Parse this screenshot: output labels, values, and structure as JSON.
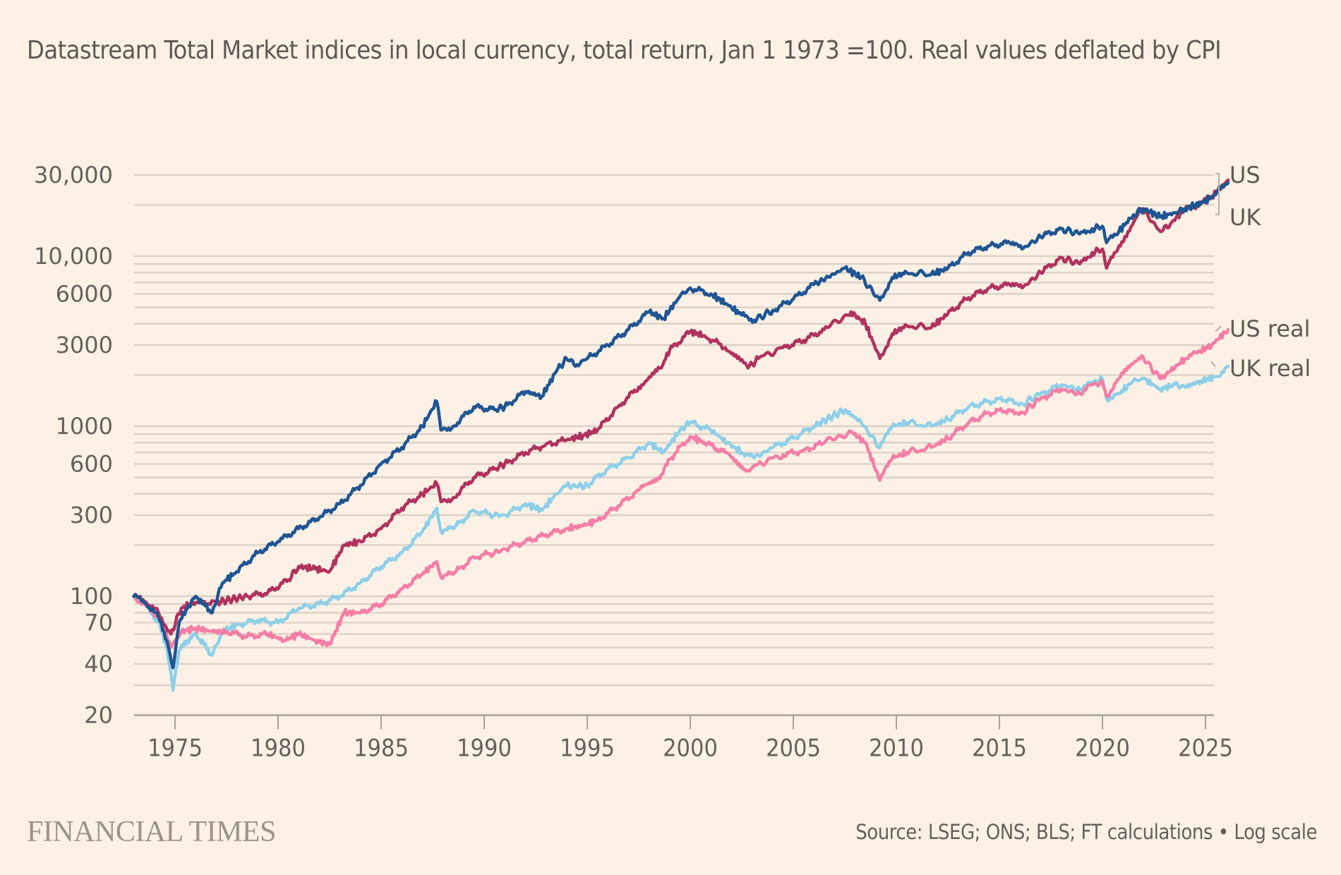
{
  "subtitle": "Datastream Total Market indices in local currency, total return, Jan 1 1973 =100. Real values deflated by CPI",
  "footer": {
    "brand": "FINANCIAL TIMES",
    "source": "Source: LSEG; ONS; BLS; FT calculations • Log scale"
  },
  "chart_data": {
    "type": "line",
    "title": "Datastream Total Market indices in local currency, total return, Jan 1 1973 =100. Real values deflated by CPI",
    "xlabel": "",
    "ylabel": "",
    "yscale": "log",
    "xlim": [
      1973,
      2026.1
    ],
    "ylim": [
      20,
      30000
    ],
    "grid": true,
    "legend": "right-end labels",
    "yticks": [
      {
        "value": 30000,
        "label": "30,000"
      },
      {
        "value": 10000,
        "label": "10,000"
      },
      {
        "value": 6000,
        "label": "6000"
      },
      {
        "value": 3000,
        "label": "3000"
      },
      {
        "value": 1000,
        "label": "1000"
      },
      {
        "value": 600,
        "label": "600"
      },
      {
        "value": 300,
        "label": "300"
      },
      {
        "value": 100,
        "label": "100"
      },
      {
        "value": 70,
        "label": "70"
      },
      {
        "value": 40,
        "label": "40"
      },
      {
        "value": 20,
        "label": "20"
      }
    ],
    "gridlines": [
      20,
      30,
      40,
      50,
      60,
      70,
      80,
      90,
      100,
      200,
      300,
      400,
      500,
      600,
      700,
      800,
      900,
      1000,
      2000,
      3000,
      4000,
      5000,
      6000,
      7000,
      8000,
      9000,
      10000,
      20000,
      30000
    ],
    "xticks": [
      {
        "value": 1975,
        "label": "1975"
      },
      {
        "value": 1980,
        "label": "1980"
      },
      {
        "value": 1985,
        "label": "1985"
      },
      {
        "value": 1990,
        "label": "1990"
      },
      {
        "value": 1995,
        "label": "1995"
      },
      {
        "value": 2000,
        "label": "2000"
      },
      {
        "value": 2005,
        "label": "2005"
      },
      {
        "value": 2010,
        "label": "2010"
      },
      {
        "value": 2015,
        "label": "2015"
      },
      {
        "value": 2020,
        "label": "2020"
      },
      {
        "value": 2025,
        "label": "2025"
      }
    ],
    "series": [
      {
        "name": "UK real",
        "color": "#8fd0e8",
        "x": [
          1973,
          1973.6,
          1974.2,
          1974.6,
          1974.9,
          1975.2,
          1975.6,
          1976.0,
          1976.4,
          1976.8,
          1977.3,
          1978,
          1979,
          1980,
          1981,
          1982,
          1983,
          1984,
          1985,
          1986,
          1987,
          1987.7,
          1987.9,
          1988.5,
          1989.5,
          1990.5,
          1991,
          1992,
          1992.8,
          1993.5,
          1994,
          1994.5,
          1995,
          1996,
          1997,
          1998,
          1998.7,
          1999.5,
          2000,
          2001,
          2001.8,
          2002.5,
          2003.1,
          2004,
          2005,
          2006,
          2007.5,
          2008.3,
          2009.2,
          2009.8,
          2010.5,
          2011.7,
          2012.5,
          2013.5,
          2014.5,
          2015.5,
          2016.1,
          2017,
          2018,
          2018.9,
          2019.5,
          2020.0,
          2020.2,
          2020.8,
          2021.5,
          2022,
          2022.8,
          2023.5,
          2024,
          2024.8,
          2025.5,
          2026.1
        ],
        "values": [
          100,
          88,
          70,
          50,
          28,
          48,
          55,
          60,
          52,
          45,
          62,
          68,
          72,
          70,
          85,
          90,
          100,
          120,
          150,
          180,
          240,
          330,
          240,
          250,
          320,
          300,
          300,
          350,
          320,
          400,
          450,
          440,
          450,
          560,
          650,
          800,
          700,
          950,
          1050,
          950,
          800,
          700,
          650,
          750,
          850,
          1000,
          1250,
          1050,
          750,
          1000,
          1050,
          1000,
          1100,
          1300,
          1400,
          1450,
          1350,
          1550,
          1750,
          1650,
          1800,
          1900,
          1450,
          1550,
          1850,
          1900,
          1650,
          1750,
          1700,
          1850,
          1950,
          2250
        ]
      },
      {
        "name": "US real",
        "color": "#f47ea6",
        "x": [
          1973,
          1973.6,
          1974.2,
          1974.8,
          1975.3,
          1976,
          1976.8,
          1977.5,
          1978.5,
          1979.5,
          1980.3,
          1981,
          1981.8,
          1982.5,
          1983.2,
          1984,
          1985,
          1986,
          1987,
          1987.7,
          1987.9,
          1988.5,
          1989.5,
          1990.5,
          1991,
          1992,
          1993,
          1994,
          1994.8,
          1995.5,
          1996.5,
          1997.5,
          1998.6,
          1999,
          2000,
          2000.7,
          2001.7,
          2002.8,
          2003.3,
          2004.5,
          2005.5,
          2006.5,
          2007.8,
          2008.5,
          2009.2,
          2009.8,
          2010.5,
          2011.7,
          2012.5,
          2013.5,
          2014.5,
          2015.5,
          2016.1,
          2017,
          2018,
          2018.9,
          2019.5,
          2020.0,
          2020.2,
          2020.8,
          2021.9,
          2022.8,
          2023.3,
          2024,
          2024.6,
          2025.3,
          2026.1
        ],
        "values": [
          100,
          88,
          75,
          50,
          62,
          65,
          62,
          62,
          58,
          60,
          55,
          60,
          55,
          52,
          80,
          80,
          90,
          110,
          135,
          160,
          130,
          135,
          170,
          180,
          190,
          210,
          230,
          250,
          260,
          280,
          340,
          420,
          520,
          640,
          870,
          800,
          700,
          550,
          600,
          680,
          720,
          800,
          930,
          800,
          480,
          650,
          700,
          750,
          850,
          1050,
          1200,
          1250,
          1200,
          1450,
          1650,
          1550,
          1750,
          1800,
          1500,
          1900,
          2600,
          1900,
          2100,
          2500,
          2700,
          3000,
          3700
        ]
      },
      {
        "name": "US",
        "color": "#b0325e",
        "x": [
          1973,
          1973.6,
          1974.2,
          1974.8,
          1975.3,
          1976,
          1977,
          1978.5,
          1979.5,
          1980.5,
          1981,
          1981.8,
          1982.5,
          1983.2,
          1984,
          1985,
          1986,
          1987,
          1987.7,
          1987.9,
          1988.5,
          1989.5,
          1990.5,
          1991,
          1992,
          1993,
          1994,
          1994.8,
          1995.5,
          1996.5,
          1997.5,
          1998.6,
          1999,
          2000,
          2000.7,
          2001.7,
          2002.8,
          2003.3,
          2004.5,
          2005.5,
          2006.5,
          2007.8,
          2008.5,
          2009.2,
          2009.8,
          2010.5,
          2011.7,
          2012.5,
          2013.5,
          2014.5,
          2015.5,
          2016.1,
          2017,
          2018,
          2018.9,
          2019.5,
          2020.0,
          2020.2,
          2020.8,
          2021.9,
          2022.8,
          2023.3,
          2024,
          2024.6,
          2025.3,
          2026.1
        ],
        "values": [
          100,
          92,
          80,
          60,
          85,
          92,
          92,
          100,
          105,
          125,
          150,
          145,
          140,
          200,
          210,
          250,
          330,
          400,
          460,
          360,
          380,
          500,
          560,
          600,
          700,
          780,
          830,
          880,
          950,
          1300,
          1700,
          2200,
          2800,
          3600,
          3400,
          2900,
          2200,
          2500,
          2900,
          3200,
          3700,
          4700,
          4000,
          2500,
          3500,
          3900,
          3800,
          4600,
          5700,
          6500,
          6800,
          6500,
          8000,
          9800,
          9000,
          10500,
          11000,
          8500,
          11500,
          19000,
          14000,
          15500,
          19000,
          20000,
          22500,
          28000
        ]
      },
      {
        "name": "UK",
        "color": "#1f5592",
        "x": [
          1973,
          1973.6,
          1974.2,
          1974.6,
          1974.9,
          1975.2,
          1975.6,
          1976.0,
          1976.4,
          1976.8,
          1977.3,
          1978,
          1979,
          1980,
          1981,
          1982,
          1983,
          1984,
          1985,
          1986,
          1987,
          1987.7,
          1987.9,
          1988.5,
          1989.5,
          1990.5,
          1991,
          1992,
          1992.8,
          1993.5,
          1994,
          1994.5,
          1995,
          1996,
          1997,
          1998,
          1998.7,
          1999.5,
          2000,
          2001,
          2001.8,
          2002.5,
          2003.1,
          2004,
          2005,
          2006,
          2007.5,
          2008.3,
          2009.2,
          2009.8,
          2010.5,
          2011.7,
          2012.5,
          2013.5,
          2014.5,
          2015.5,
          2016.1,
          2017,
          2018,
          2018.9,
          2019.5,
          2020.0,
          2020.2,
          2020.8,
          2021.5,
          2022,
          2022.8,
          2023.5,
          2024,
          2024.8,
          2025.5,
          2026.1
        ],
        "values": [
          100,
          90,
          75,
          55,
          38,
          70,
          85,
          100,
          90,
          80,
          120,
          140,
          180,
          210,
          250,
          290,
          350,
          450,
          600,
          750,
          1000,
          1400,
          950,
          1000,
          1300,
          1250,
          1300,
          1600,
          1500,
          2100,
          2500,
          2300,
          2500,
          3000,
          3700,
          4700,
          4300,
          5800,
          6500,
          6000,
          5200,
          4500,
          4200,
          4800,
          5600,
          6800,
          8500,
          7500,
          5500,
          7500,
          8000,
          7800,
          8500,
          10500,
          11500,
          12000,
          11000,
          13000,
          14500,
          13500,
          14500,
          15000,
          12000,
          14000,
          17500,
          19000,
          17000,
          18000,
          19000,
          20500,
          23000,
          27000
        ]
      }
    ],
    "end_labels": [
      {
        "text": "US",
        "series": "US"
      },
      {
        "text": "UK",
        "series": "UK"
      },
      {
        "text": "US real",
        "series": "US real"
      },
      {
        "text": "UK real",
        "series": "UK real"
      }
    ]
  }
}
